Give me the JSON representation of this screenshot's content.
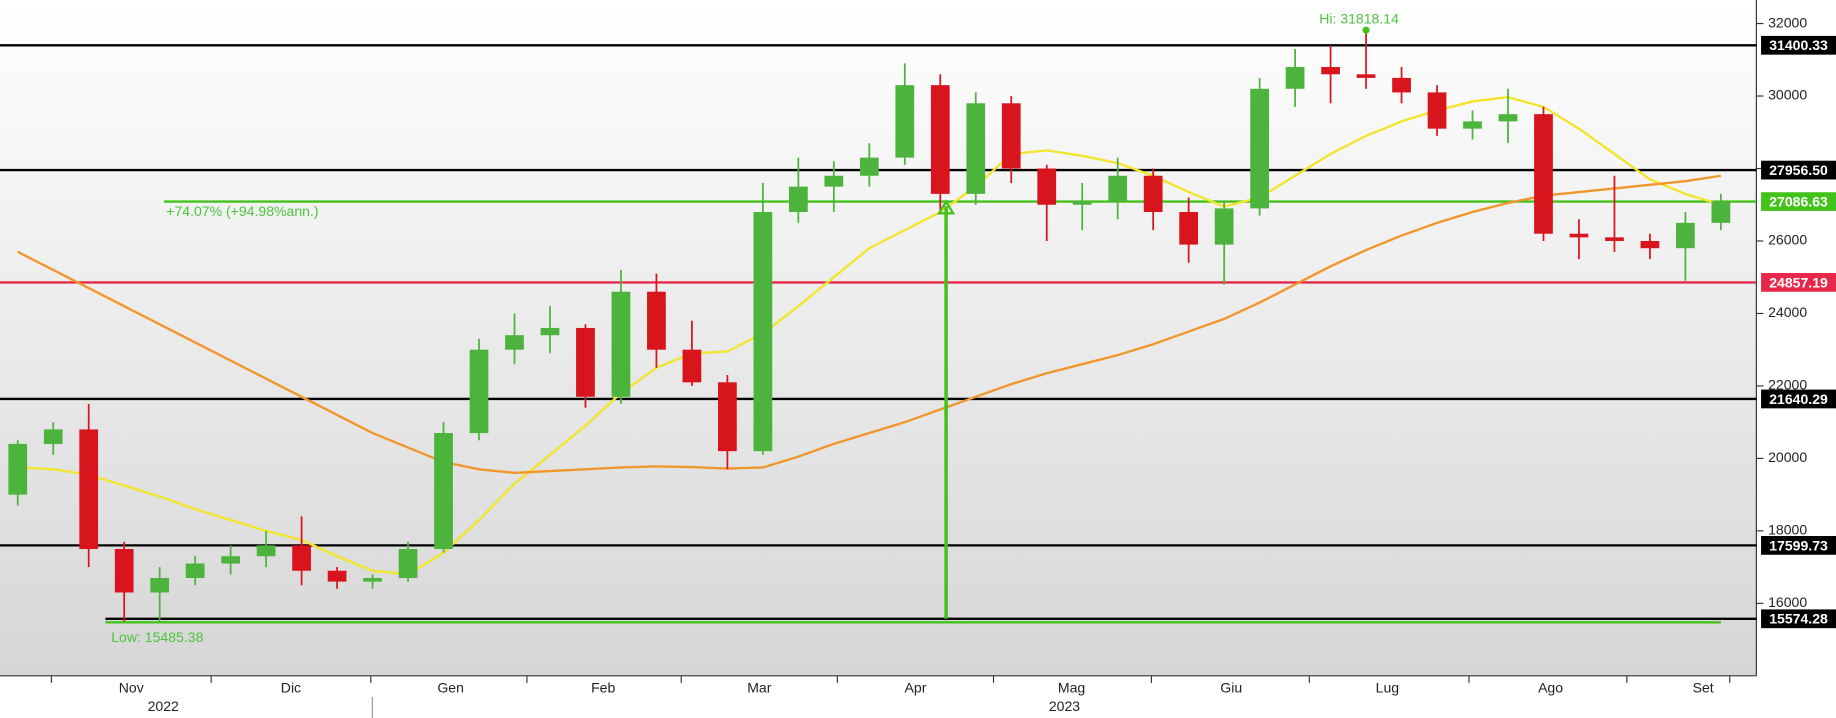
{
  "chart_data": {
    "type": "candlestick",
    "up_color": "#4cb43c",
    "down_color": "#d8141c",
    "x": [
      0,
      1,
      2,
      3,
      4,
      5,
      6,
      7,
      8,
      9,
      10,
      11,
      12,
      13,
      14,
      15,
      16,
      17,
      18,
      19,
      20,
      21,
      22,
      23,
      24,
      25,
      26,
      27,
      28,
      29,
      30,
      31,
      32,
      33,
      34,
      35,
      36,
      37,
      38,
      39,
      40,
      41,
      42,
      43,
      44,
      45,
      46,
      47,
      48
    ],
    "ohlc": [
      [
        19000,
        20500,
        18700,
        20400
      ],
      [
        20400,
        21000,
        20100,
        20800
      ],
      [
        20800,
        21500,
        17000,
        17500
      ],
      [
        17500,
        17700,
        15500,
        16300
      ],
      [
        16300,
        17000,
        15485.38,
        16700
      ],
      [
        16700,
        17300,
        16500,
        17100
      ],
      [
        17100,
        17600,
        16800,
        17300
      ],
      [
        17300,
        18000,
        17000,
        17600
      ],
      [
        17600,
        18400,
        16500,
        16900
      ],
      [
        16900,
        17000,
        16400,
        16600
      ],
      [
        16600,
        16800,
        16400,
        16700
      ],
      [
        16700,
        17700,
        16600,
        17500
      ],
      [
        17500,
        21000,
        17400,
        20700
      ],
      [
        20700,
        23300,
        20500,
        23000
      ],
      [
        23000,
        24000,
        22600,
        23400
      ],
      [
        23400,
        24200,
        22900,
        23600
      ],
      [
        23600,
        23700,
        21400,
        21700
      ],
      [
        21700,
        25200,
        21500,
        24600
      ],
      [
        24600,
        25100,
        22500,
        23000
      ],
      [
        23000,
        23800,
        22000,
        22100
      ],
      [
        22100,
        22300,
        19700,
        20200
      ],
      [
        20200,
        27600,
        20100,
        26800
      ],
      [
        26800,
        28300,
        26500,
        27500
      ],
      [
        27500,
        28200,
        26800,
        27800
      ],
      [
        27800,
        28700,
        27500,
        28300
      ],
      [
        28300,
        30900,
        28100,
        30300
      ],
      [
        30300,
        30600,
        26800,
        27300
      ],
      [
        27300,
        30100,
        27000,
        29800
      ],
      [
        29800,
        30000,
        27600,
        28000
      ],
      [
        28000,
        28100,
        26000,
        27000
      ],
      [
        27000,
        27600,
        26300,
        27100
      ],
      [
        27100,
        28300,
        26600,
        27800
      ],
      [
        27800,
        28000,
        26300,
        26800
      ],
      [
        26800,
        27200,
        25400,
        25900
      ],
      [
        25900,
        27100,
        24800,
        26900
      ],
      [
        26900,
        30500,
        26700,
        30200
      ],
      [
        30200,
        31300,
        29700,
        30800
      ],
      [
        30800,
        31400,
        29800,
        30600
      ],
      [
        30600,
        31818.14,
        30200,
        30500
      ],
      [
        30500,
        30800,
        29800,
        30100
      ],
      [
        30100,
        30300,
        28900,
        29100
      ],
      [
        29100,
        29600,
        28800,
        29300
      ],
      [
        29300,
        30200,
        28700,
        29500
      ],
      [
        29500,
        29700,
        26000,
        26200
      ],
      [
        26200,
        26600,
        25500,
        26100
      ],
      [
        26100,
        27800,
        25700,
        26000
      ],
      [
        26000,
        26200,
        25500,
        25800
      ],
      [
        25800,
        26800,
        24900,
        26500
      ],
      [
        26500,
        27300,
        26300,
        27086.63
      ]
    ],
    "lines": [
      {
        "color": "#f2e52a",
        "values": [
          19750,
          19700,
          19550,
          19250,
          18950,
          18600,
          18300,
          18000,
          17750,
          17300,
          16900,
          16800,
          17400,
          18300,
          19300,
          20100,
          20900,
          21800,
          22500,
          22900,
          22950,
          23450,
          24200,
          25000,
          25800,
          26300,
          26800,
          27500,
          28400,
          28500,
          28350,
          28150,
          27800,
          27350,
          26950,
          27200,
          27800,
          28400,
          28900,
          29300,
          29600,
          29850,
          29970,
          29700,
          29100,
          28400,
          27700,
          27300,
          27000
        ]
      },
      {
        "color": "#f0962a",
        "values": [
          25700,
          25200,
          24700,
          24200,
          23700,
          23200,
          22700,
          22200,
          21700,
          21200,
          20700,
          20300,
          19900,
          19700,
          19600,
          19650,
          19700,
          19750,
          19780,
          19760,
          19720,
          19750,
          20050,
          20400,
          20700,
          21000,
          21350,
          21700,
          22050,
          22350,
          22600,
          22850,
          23150,
          23500,
          23850,
          24300,
          24800,
          25300,
          25750,
          26150,
          26500,
          26800,
          27050,
          27250,
          27350,
          27450,
          27550,
          27650,
          27800
        ]
      }
    ],
    "levels": [
      {
        "value": 31400.33,
        "color": "#000000"
      },
      {
        "value": 27956.5,
        "label": "27956.50",
        "color": "#000000"
      },
      {
        "value": 27086.63,
        "color": "#44c21c"
      },
      {
        "value": 24857.19,
        "color": "#e8284a"
      },
      {
        "value": 21640.29,
        "color": "#000000"
      },
      {
        "value": 17599.73,
        "color": "#000000"
      },
      {
        "value": 15574.28,
        "color": "#000000"
      }
    ],
    "annotations": {
      "high": "Hi: 31818.14",
      "low": "Low: 15485.38",
      "change": "+74.07% (+94.98%ann.)"
    },
    "xlim": [
      -0.5,
      49
    ],
    "ylim": [
      14000,
      32650
    ],
    "yticks": [
      16000,
      18000,
      20000,
      22000,
      24000,
      26000,
      28000,
      30000,
      32000
    ],
    "xticks": [
      {
        "value": 3.2,
        "label": "Nov"
      },
      {
        "value": 7.7,
        "label": "Dic"
      },
      {
        "value": 12.2,
        "label": "Gen"
      },
      {
        "value": 16.5,
        "label": "Feb"
      },
      {
        "value": 20.9,
        "label": "Mar"
      },
      {
        "value": 25.3,
        "label": "Apr"
      },
      {
        "value": 29.7,
        "label": "Mag"
      },
      {
        "value": 34.2,
        "label": "Giu"
      },
      {
        "value": 38.6,
        "label": "Lug"
      },
      {
        "value": 43.2,
        "label": "Ago"
      },
      {
        "value": 47.5,
        "label": "Set"
      }
    ],
    "year_labels": [
      {
        "value": 4.1,
        "label": "2022"
      },
      {
        "value": 29.5,
        "label": "2023"
      }
    ]
  }
}
